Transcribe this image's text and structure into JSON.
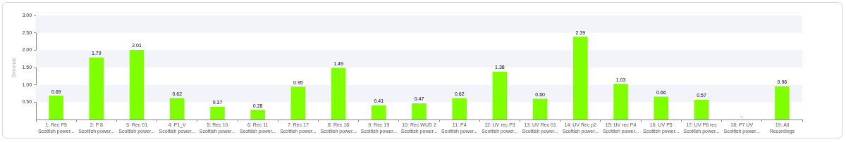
{
  "chart_data": {
    "type": "bar",
    "y_label": "Seconds",
    "categories": [
      [
        "1: Rec P5",
        "Scottish power..."
      ],
      [
        "2: P 8",
        "Scottish power..."
      ],
      [
        "3: Rec 01",
        "Scottish power..."
      ],
      [
        "4: P1_V",
        "Scottish power..."
      ],
      [
        "5: Rec 10",
        "Scottish power..."
      ],
      [
        "6: Rec 11",
        "Scottish power..."
      ],
      [
        "7: Rec 17",
        "Scottish power..."
      ],
      [
        "8: Rec 18",
        "Scottish power..."
      ],
      [
        "9: Rec 19",
        "Scottish power..."
      ],
      [
        "10: Rec WUD 2",
        "Scottish power..."
      ],
      [
        "11: P4",
        "Scottish power..."
      ],
      [
        "12: UV rec P3",
        "Scottish power..."
      ],
      [
        "13: UV Rec 01",
        "Scottish power..."
      ],
      [
        "14: UV Rec p2",
        "Scottish power..."
      ],
      [
        "15: UV rec P4",
        "Scottish power..."
      ],
      [
        "16: UV P5",
        "Scottish power..."
      ],
      [
        "17: UV P6 rec",
        "Scottish power..."
      ],
      [
        "18: P7 UV",
        "Scottish power..."
      ],
      [
        "19: All",
        "Recordings"
      ]
    ],
    "values": [
      0.69,
      1.79,
      2.01,
      0.62,
      0.37,
      0.28,
      0.95,
      1.49,
      0.41,
      0.47,
      0.62,
      1.38,
      0.6,
      2.39,
      1.03,
      0.66,
      0.57,
      null,
      0.96
    ],
    "value_labels": [
      "0.69",
      "1.79",
      "2.01",
      "0.62",
      "0.37",
      "0.28",
      "0.95",
      "1.49",
      "0.41",
      "0.47",
      "0.62",
      "1.38",
      "0.60",
      "2.39",
      "1.03",
      "0.66",
      "0.57",
      "..",
      "0.96"
    ],
    "color": "#7fff00",
    "ylim": [
      0,
      3
    ],
    "yticks": [
      {
        "value": 0.5,
        "label": "0.50"
      },
      {
        "value": 1,
        "label": "1.00"
      },
      {
        "value": 1.5,
        "label": "1.50"
      },
      {
        "value": 2,
        "label": "2.00"
      },
      {
        "value": 2.5,
        "label": "2.50"
      },
      {
        "value": 3,
        "label": "3.00"
      }
    ],
    "grid": true,
    "data_labels": true
  }
}
